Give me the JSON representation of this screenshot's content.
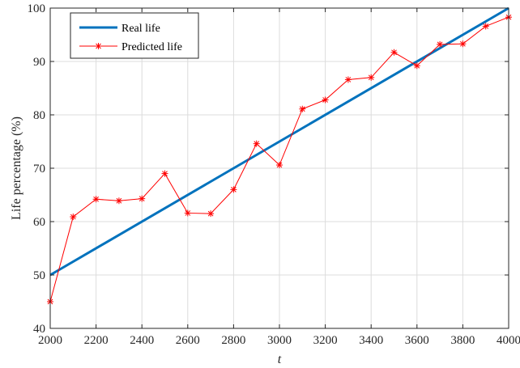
{
  "chart_data": {
    "type": "line",
    "xlabel": "t",
    "ylabel": "Life percentage (%)",
    "xlim": [
      2000,
      4000
    ],
    "ylim": [
      40,
      100
    ],
    "xticks": [
      2000,
      2200,
      2400,
      2600,
      2800,
      3000,
      3200,
      3400,
      3600,
      3800,
      4000
    ],
    "yticks": [
      40,
      50,
      60,
      70,
      80,
      90,
      100
    ],
    "grid": true,
    "legend_position": "top-left",
    "series": [
      {
        "name": "Real life",
        "color": "#0072BD",
        "marker": "none",
        "x": [
          2000,
          4000
        ],
        "y": [
          50,
          100
        ]
      },
      {
        "name": "Predicted life",
        "color": "#FF0000",
        "marker": "asterisk",
        "x": [
          2000,
          2100,
          2200,
          2300,
          2400,
          2500,
          2600,
          2700,
          2800,
          2900,
          3000,
          3100,
          3200,
          3300,
          3400,
          3500,
          3600,
          3700,
          3800,
          3900,
          4000
        ],
        "y": [
          45.0,
          60.9,
          64.2,
          63.9,
          64.3,
          69.0,
          61.6,
          61.5,
          66.0,
          74.6,
          70.6,
          81.1,
          82.8,
          86.6,
          87.0,
          91.7,
          89.2,
          93.2,
          93.3,
          96.6,
          98.3
        ]
      }
    ]
  }
}
